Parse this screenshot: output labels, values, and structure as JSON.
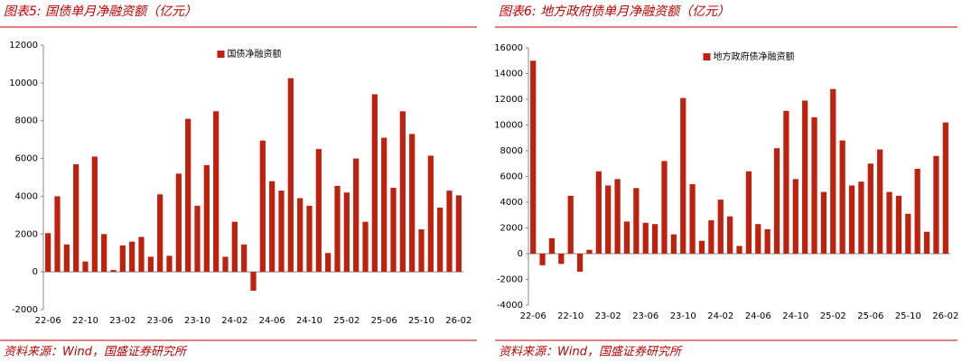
{
  "chart_data": [
    {
      "type": "bar",
      "title": "图表5:  国债单月净融资额（亿元）",
      "source": "资料来源：Wind，国盛证券研究所",
      "categories": [
        "22-06",
        null,
        null,
        null,
        "22-10",
        null,
        null,
        null,
        "23-02",
        null,
        null,
        null,
        "23-06",
        null,
        null,
        null,
        "23-10",
        null,
        null,
        null,
        "24-02",
        null,
        null,
        null,
        "24-06",
        null,
        null,
        null,
        "24-10",
        null,
        null,
        null,
        "25-02",
        null,
        null,
        null,
        "25-06",
        null,
        null,
        null,
        "25-10",
        null,
        null,
        null,
        "26-02"
      ],
      "series": [
        {
          "name": "国债净融资额",
          "color": "#c0210f",
          "values": [
            2050,
            4000,
            1450,
            5700,
            550,
            6100,
            2000,
            100,
            1400,
            1600,
            1850,
            800,
            4100,
            850,
            5200,
            8100,
            3500,
            5650,
            8500,
            800,
            2650,
            1450,
            -1000,
            6950,
            4800,
            4300,
            10250,
            3900,
            3500,
            6500,
            1000,
            4550,
            4200,
            6000,
            2650,
            9400,
            7100,
            4450,
            8500,
            7300,
            2250,
            6150,
            3400,
            4300,
            4050
          ]
        }
      ],
      "ylim": [
        -2000,
        12000
      ],
      "yticks": [
        -2000,
        0,
        2000,
        4000,
        6000,
        8000,
        10000,
        12000
      ],
      "grid": false,
      "legend": "upper center"
    },
    {
      "type": "bar",
      "title": "图表6:  地方政府债单月净融资额（亿元）",
      "source": "资料来源：Wind，国盛证券研究所",
      "categories": [
        "22-06",
        null,
        null,
        null,
        "22-10",
        null,
        null,
        null,
        "23-02",
        null,
        null,
        null,
        "23-06",
        null,
        null,
        null,
        "23-10",
        null,
        null,
        null,
        "24-02",
        null,
        null,
        null,
        "24-06",
        null,
        null,
        null,
        "24-10",
        null,
        null,
        null,
        "25-02",
        null,
        null,
        null,
        "25-06",
        null,
        null,
        null,
        "25-10",
        null,
        null,
        null,
        "26-02"
      ],
      "series": [
        {
          "name": "地方政府债净融资额",
          "color": "#c0210f",
          "values": [
            15000,
            -900,
            1200,
            -800,
            4500,
            -1400,
            300,
            6400,
            5300,
            5800,
            2500,
            5100,
            2400,
            2300,
            7200,
            1500,
            12100,
            5400,
            1000,
            2600,
            4200,
            2900,
            600,
            6400,
            2300,
            1900,
            8200,
            11100,
            5800,
            11900,
            10600,
            4800,
            12800,
            8800,
            5300,
            5600,
            7000,
            8100,
            4800,
            4500,
            3100,
            6600,
            1700,
            7600,
            10200
          ]
        }
      ],
      "ylim": [
        -4000,
        16000
      ],
      "yticks": [
        -4000,
        -2000,
        0,
        2000,
        4000,
        6000,
        8000,
        10000,
        12000,
        14000,
        16000
      ],
      "grid": false,
      "legend": "upper center"
    }
  ]
}
